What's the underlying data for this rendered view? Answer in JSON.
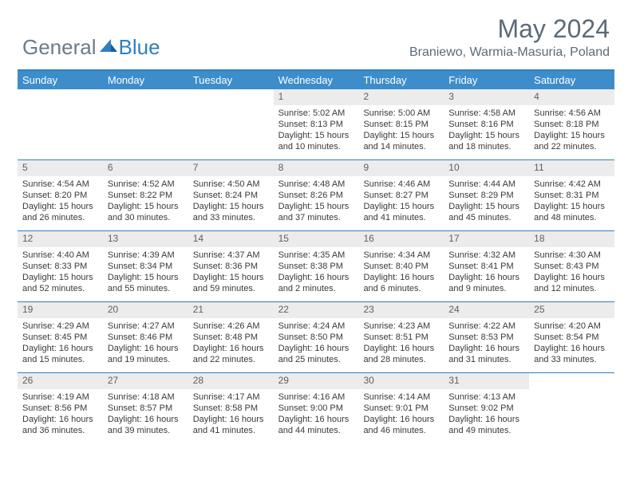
{
  "logo": {
    "general": "General",
    "blue": "Blue"
  },
  "title": "May 2024",
  "location": "Braniewo, Warmia-Masuria, Poland",
  "dayHeaders": [
    "Sunday",
    "Monday",
    "Tuesday",
    "Wednesday",
    "Thursday",
    "Friday",
    "Saturday"
  ],
  "colors": {
    "headerBg": "#3d8dcb",
    "border": "#2f7fc1",
    "dayNumBg": "#ececec",
    "titleColor": "#5c6b78"
  },
  "weeks": [
    [
      {
        "empty": true
      },
      {
        "empty": true
      },
      {
        "empty": true
      },
      {
        "n": "1",
        "sr": "5:02 AM",
        "ss": "8:13 PM",
        "d1": "15 hours",
        "d2": "and 10 minutes."
      },
      {
        "n": "2",
        "sr": "5:00 AM",
        "ss": "8:15 PM",
        "d1": "15 hours",
        "d2": "and 14 minutes."
      },
      {
        "n": "3",
        "sr": "4:58 AM",
        "ss": "8:16 PM",
        "d1": "15 hours",
        "d2": "and 18 minutes."
      },
      {
        "n": "4",
        "sr": "4:56 AM",
        "ss": "8:18 PM",
        "d1": "15 hours",
        "d2": "and 22 minutes."
      }
    ],
    [
      {
        "n": "5",
        "sr": "4:54 AM",
        "ss": "8:20 PM",
        "d1": "15 hours",
        "d2": "and 26 minutes."
      },
      {
        "n": "6",
        "sr": "4:52 AM",
        "ss": "8:22 PM",
        "d1": "15 hours",
        "d2": "and 30 minutes."
      },
      {
        "n": "7",
        "sr": "4:50 AM",
        "ss": "8:24 PM",
        "d1": "15 hours",
        "d2": "and 33 minutes."
      },
      {
        "n": "8",
        "sr": "4:48 AM",
        "ss": "8:26 PM",
        "d1": "15 hours",
        "d2": "and 37 minutes."
      },
      {
        "n": "9",
        "sr": "4:46 AM",
        "ss": "8:27 PM",
        "d1": "15 hours",
        "d2": "and 41 minutes."
      },
      {
        "n": "10",
        "sr": "4:44 AM",
        "ss": "8:29 PM",
        "d1": "15 hours",
        "d2": "and 45 minutes."
      },
      {
        "n": "11",
        "sr": "4:42 AM",
        "ss": "8:31 PM",
        "d1": "15 hours",
        "d2": "and 48 minutes."
      }
    ],
    [
      {
        "n": "12",
        "sr": "4:40 AM",
        "ss": "8:33 PM",
        "d1": "15 hours",
        "d2": "and 52 minutes."
      },
      {
        "n": "13",
        "sr": "4:39 AM",
        "ss": "8:34 PM",
        "d1": "15 hours",
        "d2": "and 55 minutes."
      },
      {
        "n": "14",
        "sr": "4:37 AM",
        "ss": "8:36 PM",
        "d1": "15 hours",
        "d2": "and 59 minutes."
      },
      {
        "n": "15",
        "sr": "4:35 AM",
        "ss": "8:38 PM",
        "d1": "16 hours",
        "d2": "and 2 minutes."
      },
      {
        "n": "16",
        "sr": "4:34 AM",
        "ss": "8:40 PM",
        "d1": "16 hours",
        "d2": "and 6 minutes."
      },
      {
        "n": "17",
        "sr": "4:32 AM",
        "ss": "8:41 PM",
        "d1": "16 hours",
        "d2": "and 9 minutes."
      },
      {
        "n": "18",
        "sr": "4:30 AM",
        "ss": "8:43 PM",
        "d1": "16 hours",
        "d2": "and 12 minutes."
      }
    ],
    [
      {
        "n": "19",
        "sr": "4:29 AM",
        "ss": "8:45 PM",
        "d1": "16 hours",
        "d2": "and 15 minutes."
      },
      {
        "n": "20",
        "sr": "4:27 AM",
        "ss": "8:46 PM",
        "d1": "16 hours",
        "d2": "and 19 minutes."
      },
      {
        "n": "21",
        "sr": "4:26 AM",
        "ss": "8:48 PM",
        "d1": "16 hours",
        "d2": "and 22 minutes."
      },
      {
        "n": "22",
        "sr": "4:24 AM",
        "ss": "8:50 PM",
        "d1": "16 hours",
        "d2": "and 25 minutes."
      },
      {
        "n": "23",
        "sr": "4:23 AM",
        "ss": "8:51 PM",
        "d1": "16 hours",
        "d2": "and 28 minutes."
      },
      {
        "n": "24",
        "sr": "4:22 AM",
        "ss": "8:53 PM",
        "d1": "16 hours",
        "d2": "and 31 minutes."
      },
      {
        "n": "25",
        "sr": "4:20 AM",
        "ss": "8:54 PM",
        "d1": "16 hours",
        "d2": "and 33 minutes."
      }
    ],
    [
      {
        "n": "26",
        "sr": "4:19 AM",
        "ss": "8:56 PM",
        "d1": "16 hours",
        "d2": "and 36 minutes."
      },
      {
        "n": "27",
        "sr": "4:18 AM",
        "ss": "8:57 PM",
        "d1": "16 hours",
        "d2": "and 39 minutes."
      },
      {
        "n": "28",
        "sr": "4:17 AM",
        "ss": "8:58 PM",
        "d1": "16 hours",
        "d2": "and 41 minutes."
      },
      {
        "n": "29",
        "sr": "4:16 AM",
        "ss": "9:00 PM",
        "d1": "16 hours",
        "d2": "and 44 minutes."
      },
      {
        "n": "30",
        "sr": "4:14 AM",
        "ss": "9:01 PM",
        "d1": "16 hours",
        "d2": "and 46 minutes."
      },
      {
        "n": "31",
        "sr": "4:13 AM",
        "ss": "9:02 PM",
        "d1": "16 hours",
        "d2": "and 49 minutes."
      },
      {
        "empty": true
      }
    ]
  ],
  "labels": {
    "sunrise": "Sunrise: ",
    "sunset": "Sunset: ",
    "daylight": "Daylight: "
  }
}
